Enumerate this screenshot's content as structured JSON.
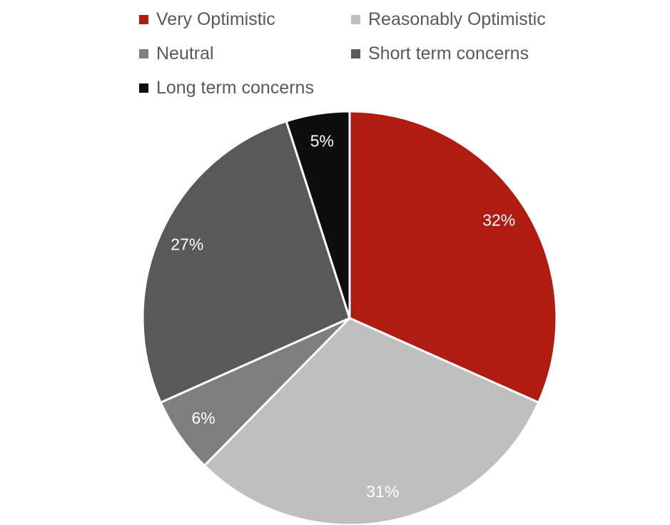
{
  "chart_data": {
    "type": "pie",
    "title": "",
    "legend_position": "top",
    "start_angle": "12 o'clock, clockwise",
    "slices": [
      {
        "name": "Very Optimistic",
        "value": 32,
        "label": "32%",
        "color": "#B01C12",
        "label_color": "#FFFFFF"
      },
      {
        "name": "Reasonably Optimistic",
        "value": 31,
        "label": "31%",
        "color": "#BFBFBF",
        "label_color": "#FFFFFF"
      },
      {
        "name": "Neutral",
        "value": 6,
        "label": "6%",
        "color": "#7F7F7F",
        "label_color": "#FFFFFF"
      },
      {
        "name": "Short term concerns",
        "value": 27,
        "label": "27%",
        "color": "#595959",
        "label_color": "#FFFFFF"
      },
      {
        "name": "Long term concerns",
        "value": 5,
        "label": "5%",
        "color": "#0D0D0D",
        "label_color": "#FFFFFF"
      }
    ]
  }
}
